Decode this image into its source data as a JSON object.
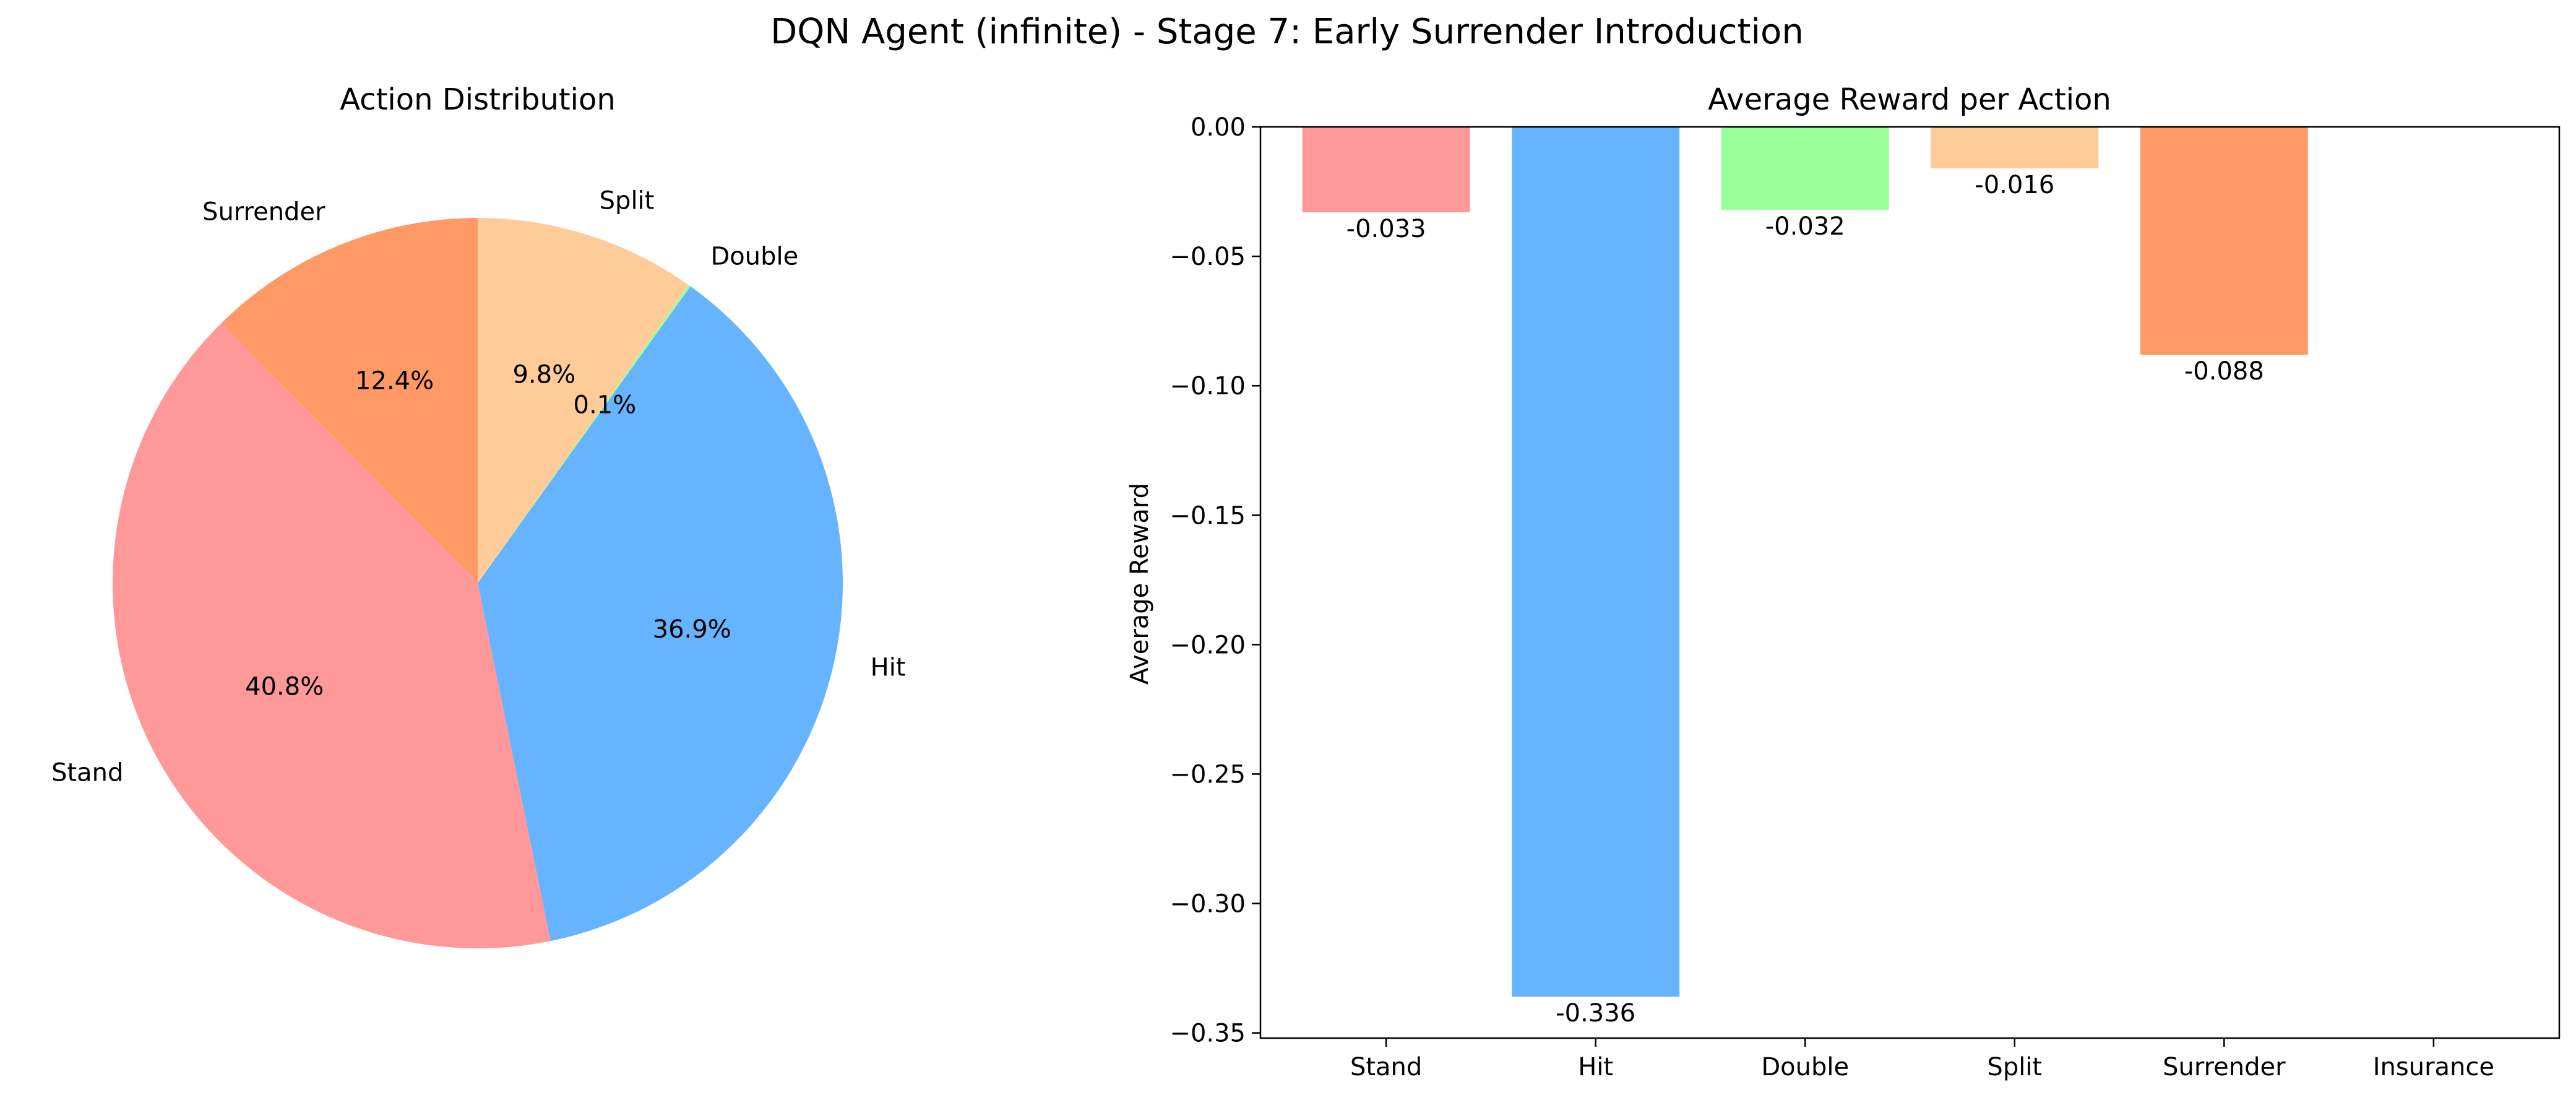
{
  "figure_title": "DQN Agent (infinite) - Stage 7: Early Surrender Introduction",
  "chart_data": [
    {
      "type": "pie",
      "title": "Action Distribution",
      "slices": [
        {
          "label": "Surrender",
          "value": 12.4,
          "pct_label": "12.4%",
          "color": "#ff9966"
        },
        {
          "label": "Stand",
          "value": 40.8,
          "pct_label": "40.8%",
          "color": "#ff9999"
        },
        {
          "label": "Hit",
          "value": 36.9,
          "pct_label": "36.9%",
          "color": "#66b3ff"
        },
        {
          "label": "Double",
          "value": 0.1,
          "pct_label": "0.1%",
          "color": "#99ff99"
        },
        {
          "label": "Split",
          "value": 9.8,
          "pct_label": "9.8%",
          "color": "#ffcc99"
        }
      ],
      "start_angle_deg": 90,
      "direction": "counterclockwise"
    },
    {
      "type": "bar",
      "title": "Average Reward per Action",
      "xlabel": "",
      "ylabel": "Average Reward",
      "categories": [
        "Stand",
        "Hit",
        "Double",
        "Split",
        "Surrender",
        "Insurance"
      ],
      "values": [
        -0.033,
        -0.336,
        -0.032,
        -0.016,
        -0.088,
        null
      ],
      "value_labels": [
        "-0.033",
        "-0.336",
        "-0.032",
        "-0.016",
        "-0.088",
        ""
      ],
      "colors": [
        "#ff9999",
        "#66b3ff",
        "#99ff99",
        "#ffcc99",
        "#ff9966",
        "#ffffff"
      ],
      "ylim": [
        -0.352,
        0.0
      ],
      "yticks": [
        0.0,
        -0.05,
        -0.1,
        -0.15,
        -0.2,
        -0.25,
        -0.3,
        -0.35
      ],
      "ytick_labels": [
        "0.00",
        "−0.05",
        "−0.10",
        "−0.15",
        "−0.20",
        "−0.25",
        "−0.30",
        "−0.35"
      ],
      "grid": false
    }
  ]
}
